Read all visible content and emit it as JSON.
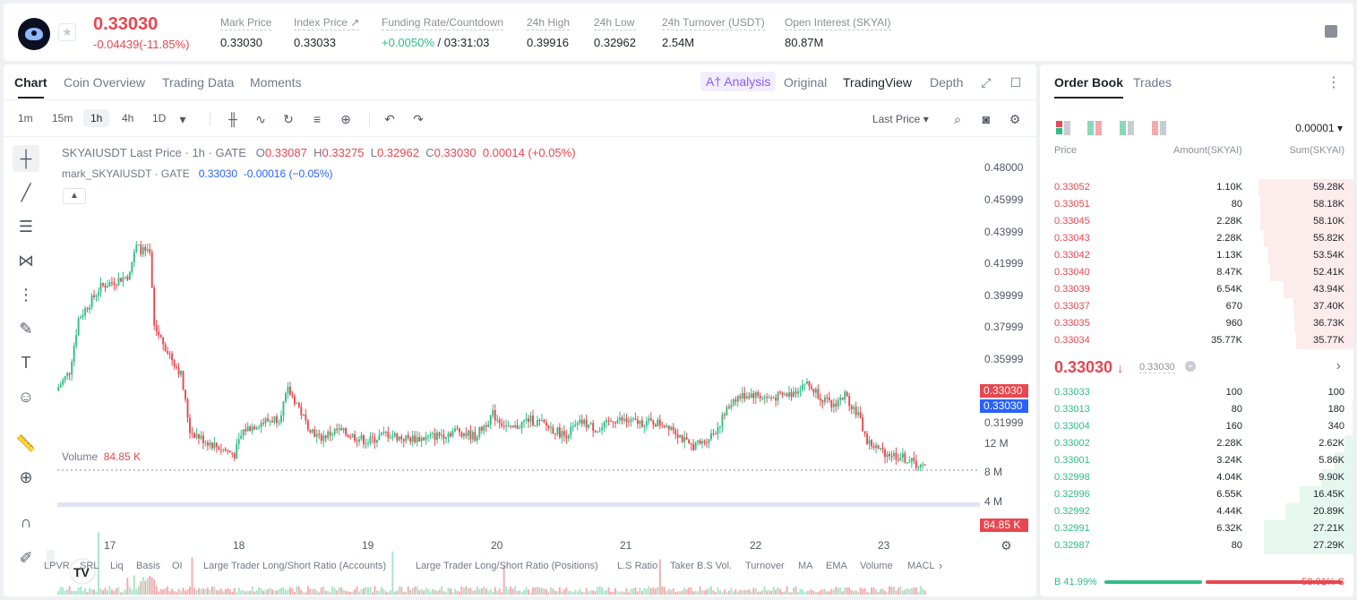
{
  "ticker": {
    "last_price": "0.33030",
    "change": "-0.04439(-11.85%)",
    "stats": [
      {
        "label": "Mark Price",
        "value": "0.33030"
      },
      {
        "label": "Index Price ↗",
        "value": "0.33033"
      },
      {
        "label": "Funding Rate/Countdown",
        "value": "+0.0050%",
        "value2": " / 03:31:03"
      },
      {
        "label": "24h High",
        "value": "0.39916"
      },
      {
        "label": "24h Low",
        "value": "0.32962"
      },
      {
        "label": "24h Turnover (USDT)",
        "value": "2.54M"
      },
      {
        "label": "Open Interest (SKYAI)",
        "value": "80.87M"
      }
    ]
  },
  "chart_tabs": {
    "chart": "Chart",
    "coin_overview": "Coin Overview",
    "trading_data": "Trading Data",
    "moments": "Moments",
    "ai": "A† Analysis",
    "original": "Original",
    "tradingview": "TradingView",
    "depth": "Depth"
  },
  "timeframes": [
    "1m",
    "15m",
    "1h",
    "4h",
    "1D"
  ],
  "last_price_select": "Last Price",
  "legend": {
    "symbol": "SKYAIUSDT Last Price · 1h · GATE",
    "o_label": "O",
    "o": "0.33087",
    "h_label": "H",
    "h": "0.33275",
    "l_label": "L",
    "l": "0.32962",
    "c_label": "C",
    "c": "0.33030",
    "chg": "0.00014 (+0.05%)",
    "mark_symbol": "mark_SKYAIUSDT · GATE",
    "mark_value": "0.33030",
    "mark_chg": "-0.00016 (−0.05%)",
    "volume_label": "Volume",
    "volume_value": "84.85 K"
  },
  "price_axis": [
    "0.48000",
    "0.45999",
    "0.43999",
    "0.41999",
    "0.39999",
    "0.37999",
    "0.35999",
    "0.31999"
  ],
  "last_price_tag": "0.33030",
  "mark_price_tag": "0.33030",
  "volume_axis": [
    "12 M",
    "8 M",
    "4 M"
  ],
  "volume_tag": "84.85 K",
  "dates": [
    "17",
    "18",
    "19",
    "20",
    "21",
    "22",
    "23"
  ],
  "indicators": [
    "LPVR",
    "SRL",
    "Liq",
    "Basis",
    "OI",
    "Large Trader Long/Short Ratio (Accounts)",
    "Large Trader Long/Short Ratio (Positions)",
    "L.S Ratio",
    "Taker B.S Vol.",
    "Turnover",
    "MA",
    "EMA",
    "Volume",
    "MACL"
  ],
  "orderbook": {
    "tab_book": "Order Book",
    "tab_trades": "Trades",
    "precision": "0.00001",
    "headers": {
      "price": "Price",
      "amount": "Amount(SKYAI)",
      "sum": "Sum(SKYAI)"
    },
    "asks": [
      {
        "price": "0.33052",
        "amount": "1.10K",
        "sum": "59.28K",
        "depth": 1.0
      },
      {
        "price": "0.33051",
        "amount": "80",
        "sum": "58.18K",
        "depth": 0.98
      },
      {
        "price": "0.33045",
        "amount": "2.28K",
        "sum": "58.10K",
        "depth": 0.98
      },
      {
        "price": "0.33043",
        "amount": "2.28K",
        "sum": "55.82K",
        "depth": 0.94
      },
      {
        "price": "0.33042",
        "amount": "1.13K",
        "sum": "53.54K",
        "depth": 0.9
      },
      {
        "price": "0.33040",
        "amount": "8.47K",
        "sum": "52.41K",
        "depth": 0.88
      },
      {
        "price": "0.33039",
        "amount": "6.54K",
        "sum": "43.94K",
        "depth": 0.74
      },
      {
        "price": "0.33037",
        "amount": "670",
        "sum": "37.40K",
        "depth": 0.63
      },
      {
        "price": "0.33035",
        "amount": "960",
        "sum": "36.73K",
        "depth": 0.62
      },
      {
        "price": "0.33034",
        "amount": "35.77K",
        "sum": "35.77K",
        "depth": 0.6
      }
    ],
    "mid_price": "0.33030",
    "mid_arrow": "↓",
    "mid_mark": "0.33030",
    "bids": [
      {
        "price": "0.33033",
        "amount": "100",
        "sum": "100",
        "depth": 0.004
      },
      {
        "price": "0.33013",
        "amount": "80",
        "sum": "180",
        "depth": 0.006
      },
      {
        "price": "0.33004",
        "amount": "160",
        "sum": "340",
        "depth": 0.012
      },
      {
        "price": "0.33002",
        "amount": "2.28K",
        "sum": "2.62K",
        "depth": 0.09
      },
      {
        "price": "0.33001",
        "amount": "3.24K",
        "sum": "5.86K",
        "depth": 0.2
      },
      {
        "price": "0.32998",
        "amount": "4.04K",
        "sum": "9.90K",
        "depth": 0.34
      },
      {
        "price": "0.32996",
        "amount": "6.55K",
        "sum": "16.45K",
        "depth": 0.57
      },
      {
        "price": "0.32992",
        "amount": "4.44K",
        "sum": "20.89K",
        "depth": 0.72
      },
      {
        "price": "0.32991",
        "amount": "6.32K",
        "sum": "27.21K",
        "depth": 0.94
      },
      {
        "price": "0.32987",
        "amount": "80",
        "sum": "27.29K",
        "depth": 0.94
      }
    ],
    "buy_ratio": "41.99%",
    "sell_ratio": "58.01%",
    "buy_label": "B",
    "sell_label": "S",
    "buy_fraction": 0.4199
  },
  "colors": {
    "up": "#2ebd85",
    "down": "#e8474f",
    "mark": "#2962ff",
    "accent_ai": "#8b5cf6"
  }
}
